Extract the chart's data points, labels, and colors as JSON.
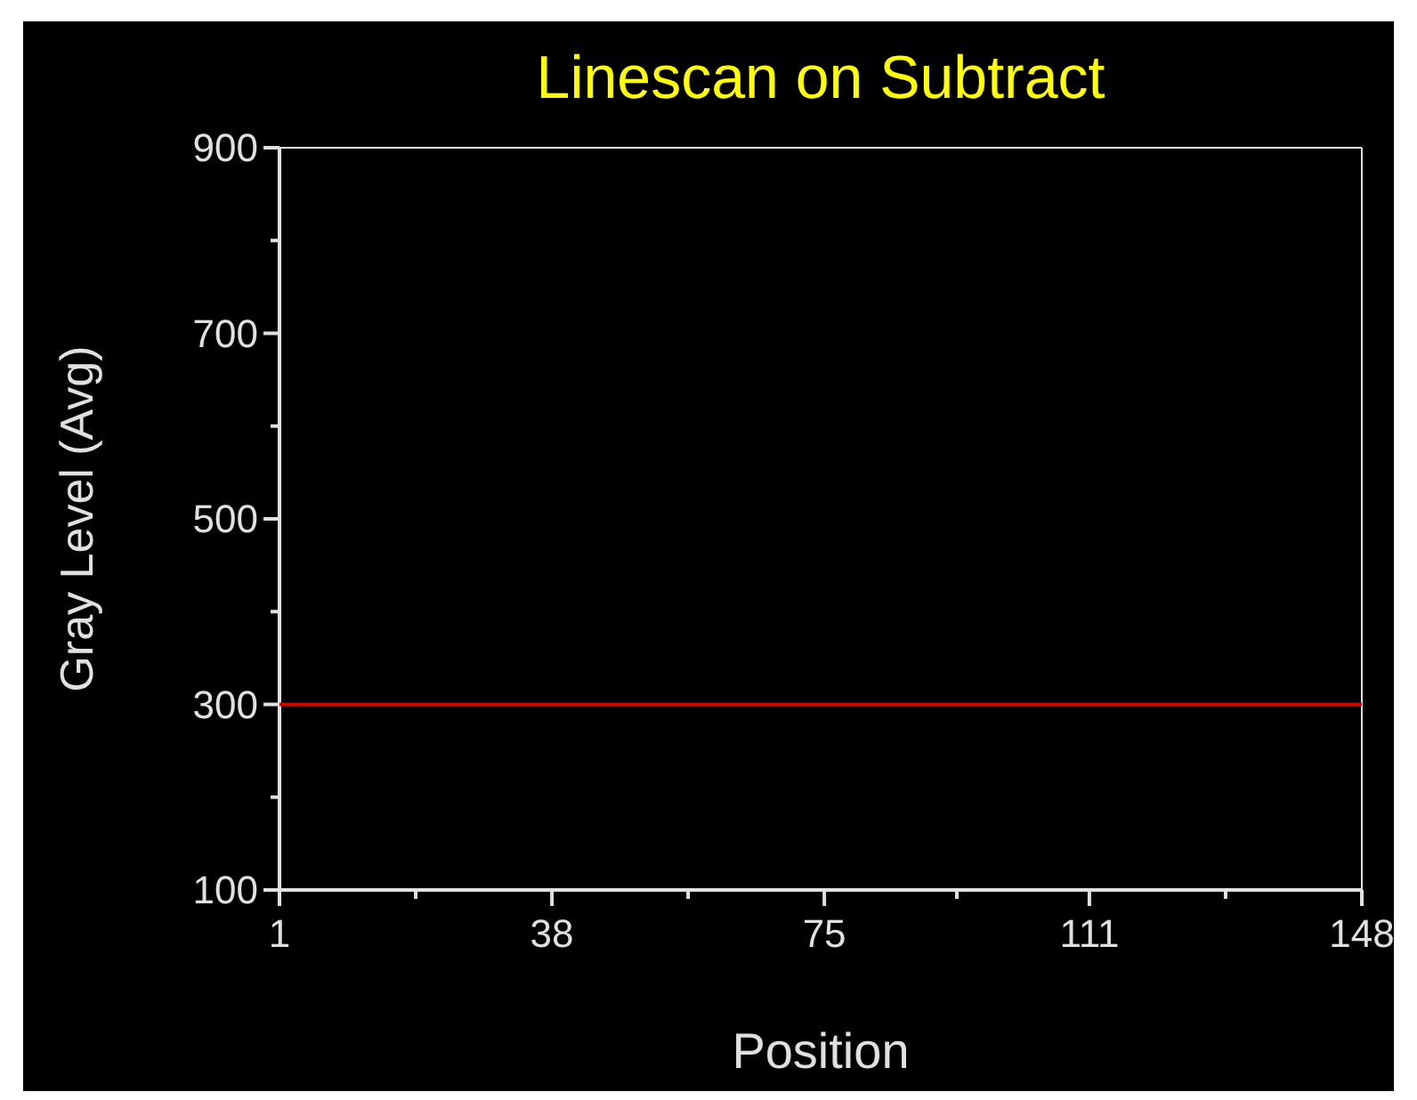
{
  "chart_data": {
    "type": "line",
    "title": "Linescan on Subtract",
    "xlabel": "Position",
    "ylabel": "Gray Level (Avg)",
    "x": [
      1,
      148
    ],
    "series": [
      {
        "color": "#d40000",
        "values": [
          300,
          300
        ]
      }
    ],
    "xlim": [
      1,
      148
    ],
    "xticks": [
      1,
      {
        "value": 19.5,
        "label": null
      },
      38,
      {
        "value": 56.5,
        "label": null
      },
      75,
      {
        "value": 93,
        "label": null
      },
      111,
      {
        "value": 129.5,
        "label": null
      },
      148
    ],
    "ylim": [
      100,
      900
    ],
    "yticks": [
      100,
      {
        "value": 200,
        "label": null
      },
      300,
      {
        "value": 400,
        "label": null
      },
      500,
      {
        "value": 600,
        "label": null
      },
      700,
      {
        "value": 800,
        "label": null
      },
      900
    ]
  }
}
